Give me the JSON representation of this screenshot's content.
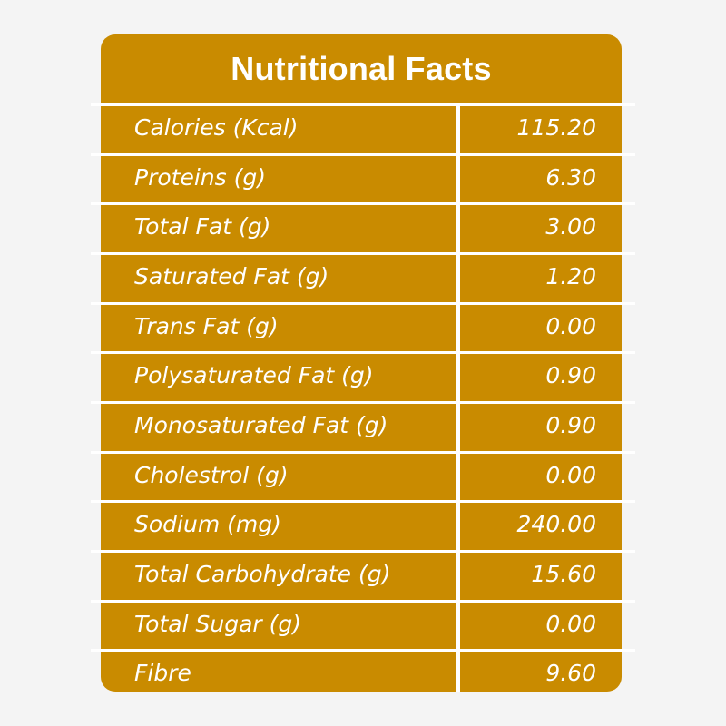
{
  "title": "Nutritional Facts",
  "colors": {
    "panel": "#c98b00",
    "text": "#ffffff",
    "background": "#f4f4f4"
  },
  "rows": [
    {
      "label": "Calories (Kcal)",
      "value": "115.20"
    },
    {
      "label": "Proteins (g)",
      "value": "6.30"
    },
    {
      "label": "Total Fat (g)",
      "value": "3.00"
    },
    {
      "label": "Saturated Fat (g)",
      "value": "1.20"
    },
    {
      "label": "Trans Fat (g)",
      "value": "0.00"
    },
    {
      "label": "Polysaturated Fat (g)",
      "value": "0.90"
    },
    {
      "label": "Monosaturated Fat (g)",
      "value": "0.90"
    },
    {
      "label": "Cholestrol (g)",
      "value": "0.00"
    },
    {
      "label": "Sodium (mg)",
      "value": "240.00"
    },
    {
      "label": "Total Carbohydrate (g)",
      "value": "15.60"
    },
    {
      "label": "Total Sugar (g)",
      "value": "0.00"
    },
    {
      "label": "Fibre",
      "value": "9.60"
    }
  ]
}
